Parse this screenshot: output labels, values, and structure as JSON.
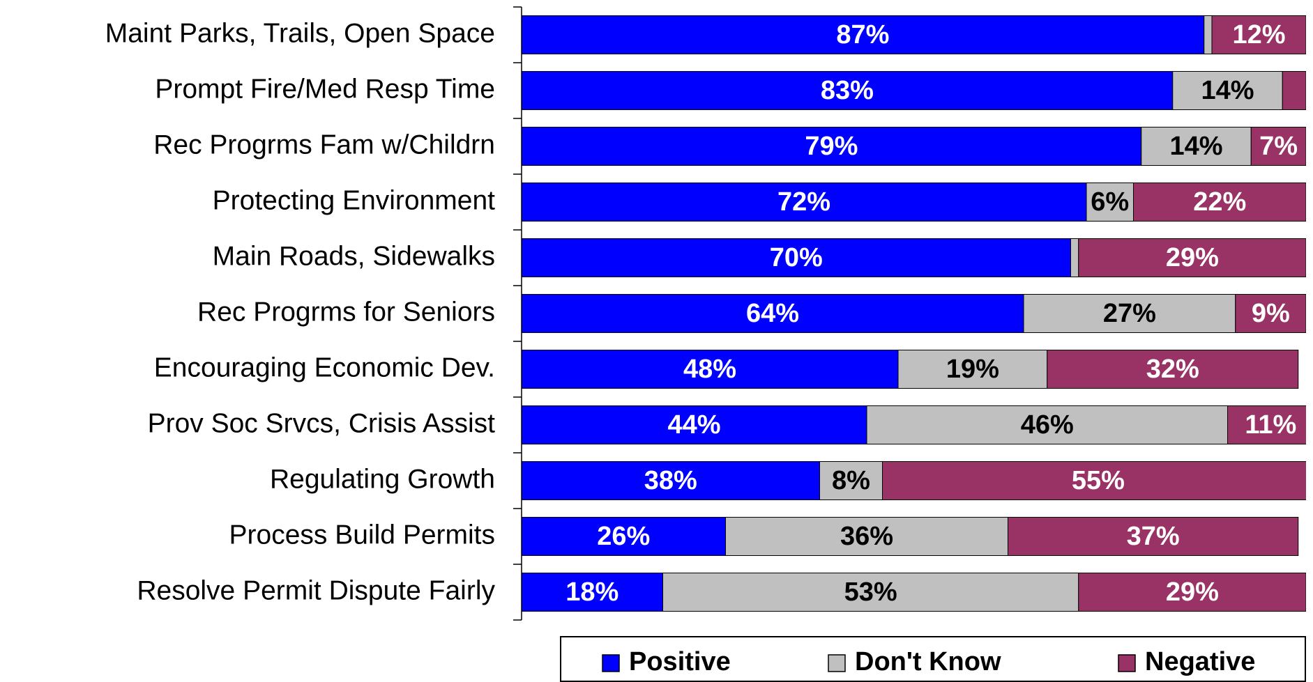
{
  "chart_data": {
    "type": "bar",
    "orientation": "horizontal",
    "stacked": true,
    "categories": [
      "Maint Parks, Trails, Open Space",
      "Prompt Fire/Med Resp Time",
      "Rec Progrms Fam w/Childrn",
      "Protecting Environment",
      "Main Roads, Sidewalks",
      "Rec Progrms for Seniors",
      "Encouraging Economic Dev.",
      "Prov Soc Srvcs, Crisis Assist",
      "Regulating Growth",
      "Process Build Permits",
      "Resolve Permit Dispute Fairly"
    ],
    "series": [
      {
        "name": "Positive",
        "color": "#0000ff",
        "label_color": "#ffffff",
        "values": [
          87,
          83,
          79,
          72,
          70,
          64,
          48,
          44,
          38,
          26,
          18
        ],
        "value_labels": [
          "87%",
          "83%",
          "79%",
          "72%",
          "70%",
          "64%",
          "48%",
          "44%",
          "38%",
          "26%",
          "18%"
        ]
      },
      {
        "name": "Don't Know",
        "color": "#c0c0c0",
        "label_color": "#000000",
        "values": [
          1,
          14,
          14,
          6,
          1,
          27,
          19,
          46,
          8,
          36,
          53
        ],
        "value_labels": [
          null,
          "14%",
          "14%",
          "6%",
          null,
          "27%",
          "19%",
          "46%",
          "8%",
          "36%",
          "53%"
        ]
      },
      {
        "name": "Negative",
        "color": "#993366",
        "label_color": "#ffffff",
        "values": [
          12,
          3,
          7,
          22,
          29,
          9,
          32,
          11,
          55,
          37,
          29
        ],
        "value_labels": [
          "12%",
          null,
          "7%",
          "22%",
          "29%",
          "9%",
          "32%",
          "11%",
          "55%",
          "37%",
          "29%"
        ]
      }
    ],
    "xlim": [
      0,
      100
    ],
    "legend": "bottom"
  }
}
